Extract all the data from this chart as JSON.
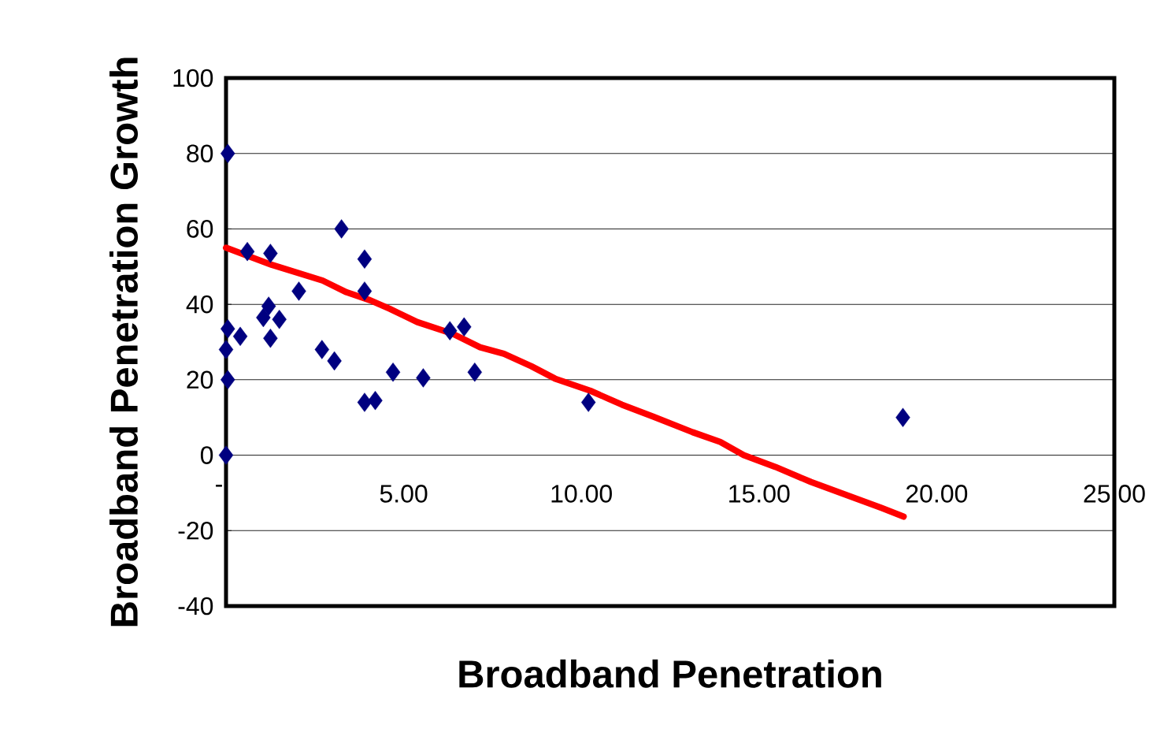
{
  "chart_data": {
    "type": "scatter",
    "xlabel": "Broadband Penetration",
    "ylabel": "Broadband Penetration Growth",
    "xlim": [
      0,
      25
    ],
    "ylim": [
      -40,
      100
    ],
    "xticks": [
      {
        "value": 0,
        "label": "-"
      },
      {
        "value": 5,
        "label": "5.00"
      },
      {
        "value": 10,
        "label": "10.00"
      },
      {
        "value": 15,
        "label": "15.00"
      },
      {
        "value": 20,
        "label": "20.00"
      },
      {
        "value": 25,
        "label": "25.00"
      }
    ],
    "yticks": [
      -40,
      -20,
      0,
      20,
      40,
      60,
      80,
      100
    ],
    "grid": "y",
    "series": [
      {
        "marker": "diamond",
        "color": "#000080",
        "x": [
          0.05,
          0.6,
          1.25,
          3.25,
          3.9,
          3.9,
          2.05,
          1.2,
          1.05,
          1.5,
          1.25,
          0.4,
          0.05,
          0,
          0.05,
          0,
          2.7,
          3.05,
          3.9,
          4.2,
          4.7,
          5.55,
          6.3,
          6.7,
          7.0,
          10.2,
          19.05
        ],
        "values": [
          80,
          54,
          53.5,
          60,
          52,
          43.5,
          43.5,
          39.5,
          36.5,
          36,
          31,
          31.5,
          33.5,
          28,
          20,
          0,
          28,
          25,
          14,
          14.5,
          22,
          20.5,
          33,
          34,
          22,
          14,
          10
        ]
      },
      {
        "type": "line",
        "line_style": "solid",
        "color": "#ff0000",
        "x": [
          0,
          1.28,
          2.72,
          3.39,
          4.05,
          4.61,
          5.38,
          6.38,
          7.15,
          7.82,
          8.59,
          9.26,
          10.25,
          11.14,
          12.03,
          13.13,
          13.91,
          14.57,
          15.46,
          16.46,
          17.56,
          18.45,
          19.07
        ],
        "values": [
          55,
          50.5,
          46.3,
          43.2,
          41.1,
          38.8,
          35.3,
          32.2,
          28.6,
          26.9,
          23.6,
          20.3,
          17.1,
          13.4,
          10.2,
          6.1,
          3.5,
          0,
          -3.1,
          -7.1,
          -10.9,
          -14.0,
          -16.3
        ]
      }
    ]
  }
}
